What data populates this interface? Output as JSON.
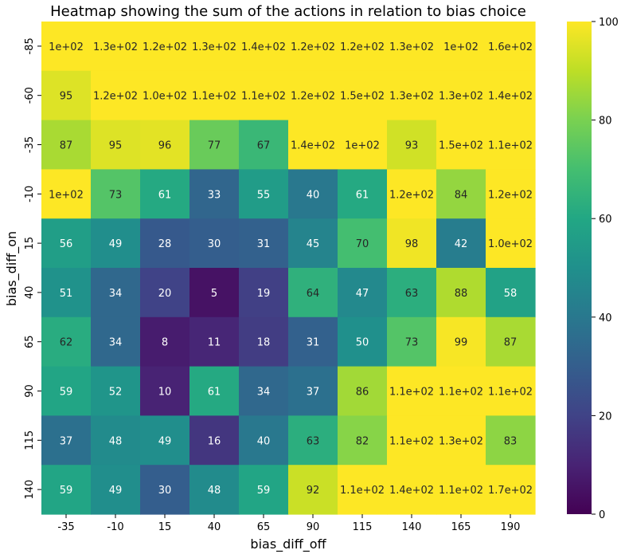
{
  "chart_data": {
    "type": "heatmap",
    "title": "Heatmap showing the sum of the actions in relation to bias choice",
    "xlabel": "bias_diff_off",
    "ylabel": "bias_diff_on",
    "x_categories": [
      "-35",
      "-10",
      "15",
      "40",
      "65",
      "90",
      "115",
      "140",
      "165",
      "190"
    ],
    "y_categories": [
      "-85",
      "-60",
      "-35",
      "-10",
      "15",
      "40",
      "65",
      "90",
      "115",
      "140"
    ],
    "values": [
      [
        100,
        130,
        120,
        130,
        140,
        120,
        120,
        130,
        100,
        160
      ],
      [
        95,
        120,
        100,
        110,
        110,
        120,
        150,
        130,
        130,
        140
      ],
      [
        87,
        95,
        96,
        77,
        67,
        140,
        100,
        93,
        150,
        110
      ],
      [
        100,
        73,
        61,
        33,
        55,
        40,
        61,
        120,
        84,
        120
      ],
      [
        56,
        49,
        28,
        30,
        31,
        45,
        70,
        98,
        42,
        100
      ],
      [
        51,
        34,
        20,
        5,
        19,
        64,
        47,
        63,
        88,
        58
      ],
      [
        62,
        34,
        8,
        11,
        18,
        31,
        50,
        73,
        99,
        87
      ],
      [
        59,
        52,
        10,
        61,
        34,
        37,
        86,
        110,
        110,
        110
      ],
      [
        37,
        48,
        49,
        16,
        40,
        63,
        82,
        110,
        130,
        83
      ],
      [
        59,
        49,
        30,
        48,
        59,
        92,
        110,
        140,
        110,
        170
      ]
    ],
    "annotations": [
      [
        "1e+02",
        "1.3e+02",
        "1.2e+02",
        "1.3e+02",
        "1.4e+02",
        "1.2e+02",
        "1.2e+02",
        "1.3e+02",
        "1e+02",
        "1.6e+02"
      ],
      [
        "95",
        "1.2e+02",
        "1.0e+02",
        "1.1e+02",
        "1.1e+02",
        "1.2e+02",
        "1.5e+02",
        "1.3e+02",
        "1.3e+02",
        "1.4e+02"
      ],
      [
        "87",
        "95",
        "96",
        "77",
        "67",
        "1.4e+02",
        "1e+02",
        "93",
        "1.5e+02",
        "1.1e+02"
      ],
      [
        "1e+02",
        "73",
        "61",
        "33",
        "55",
        "40",
        "61",
        "1.2e+02",
        "84",
        "1.2e+02"
      ],
      [
        "56",
        "49",
        "28",
        "30",
        "31",
        "45",
        "70",
        "98",
        "42",
        "1.0e+02"
      ],
      [
        "51",
        "34",
        "20",
        "5",
        "19",
        "64",
        "47",
        "63",
        "88",
        "58"
      ],
      [
        "62",
        "34",
        "8",
        "11",
        "18",
        "31",
        "50",
        "73",
        "99",
        "87"
      ],
      [
        "59",
        "52",
        "10",
        "61",
        "34",
        "37",
        "86",
        "1.1e+02",
        "1.1e+02",
        "1.1e+02"
      ],
      [
        "37",
        "48",
        "49",
        "16",
        "40",
        "63",
        "82",
        "1.1e+02",
        "1.3e+02",
        "83"
      ],
      [
        "59",
        "49",
        "30",
        "48",
        "59",
        "92",
        "1.1e+02",
        "1.4e+02",
        "1.1e+02",
        "1.7e+02"
      ]
    ],
    "colormap": "viridis",
    "vmin": 0,
    "vmax": 100,
    "colorbar_ticks": [
      "0",
      "20",
      "40",
      "60",
      "80",
      "100"
    ],
    "grid": false,
    "legend": "colorbar-right"
  }
}
